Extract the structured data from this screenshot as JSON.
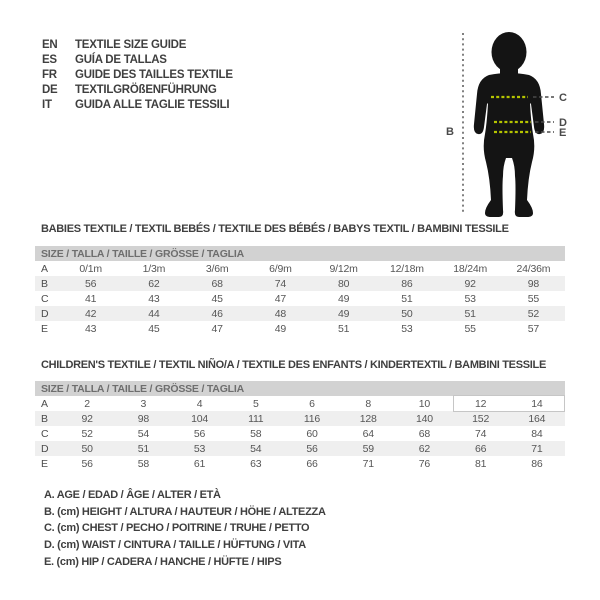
{
  "colors": {
    "background": "#ffffff",
    "text": "#3f3f3f",
    "table_text": "#565656",
    "header_bar": "#d2d2d2",
    "header_bar_text": "#6e6e6e",
    "row_shade": "#efefef",
    "silhouette": "#141414",
    "measure_dash": "#b5c400",
    "guide_dash": "#4a4a4a",
    "highlight_border": "#c6c6c6"
  },
  "languages": [
    {
      "code": "EN",
      "label": "TEXTILE SIZE GUIDE"
    },
    {
      "code": "ES",
      "label": "GUÍA DE TALLAS"
    },
    {
      "code": "FR",
      "label": "GUIDE DES TAILLES TEXTILE"
    },
    {
      "code": "DE",
      "label": "TEXTILGRÖßENFÜHRUNG"
    },
    {
      "code": "IT",
      "label": "GUIDA ALLE TAGLIE TESSILI"
    }
  ],
  "figure": {
    "labels": {
      "height": "B",
      "chest": "C",
      "waist": "D",
      "hip": "E"
    }
  },
  "babies": {
    "title": "BABIES TEXTILE / TEXTIL BEBÉS / TEXTILE DES BÉBÉS / BABYS TEXTIL / BAMBINI TESSILE",
    "size_header": "SIZE / TALLA / TAILLE / GRÖSSE / TAGLIA",
    "rows": [
      {
        "key": "A",
        "shaded": false,
        "cells": [
          "0/1m",
          "1/3m",
          "3/6m",
          "6/9m",
          "9/12m",
          "12/18m",
          "18/24m",
          "24/36m"
        ]
      },
      {
        "key": "B",
        "shaded": true,
        "cells": [
          "56",
          "62",
          "68",
          "74",
          "80",
          "86",
          "92",
          "98"
        ]
      },
      {
        "key": "C",
        "shaded": false,
        "cells": [
          "41",
          "43",
          "45",
          "47",
          "49",
          "51",
          "53",
          "55"
        ]
      },
      {
        "key": "D",
        "shaded": true,
        "cells": [
          "42",
          "44",
          "46",
          "48",
          "49",
          "50",
          "51",
          "52"
        ]
      },
      {
        "key": "E",
        "shaded": false,
        "cells": [
          "43",
          "45",
          "47",
          "49",
          "51",
          "53",
          "55",
          "57"
        ]
      }
    ]
  },
  "children": {
    "title": "CHILDREN'S TEXTILE / TEXTIL NIÑO/A / TEXTILE DES ENFANTS / KINDERTEXTIL / BAMBINI TESSILE",
    "size_header": "SIZE / TALLA / TAILLE / GRÖSSE / TAGLIA",
    "highlighted_sizes": [
      "12",
      "14"
    ],
    "rows": [
      {
        "key": "A",
        "shaded": false,
        "cells": [
          "2",
          "3",
          "4",
          "5",
          "6",
          "8",
          "10",
          "12",
          "14"
        ]
      },
      {
        "key": "B",
        "shaded": true,
        "cells": [
          "92",
          "98",
          "104",
          "111",
          "116",
          "128",
          "140",
          "152",
          "164"
        ]
      },
      {
        "key": "C",
        "shaded": false,
        "cells": [
          "52",
          "54",
          "56",
          "58",
          "60",
          "64",
          "68",
          "74",
          "84"
        ]
      },
      {
        "key": "D",
        "shaded": true,
        "cells": [
          "50",
          "51",
          "53",
          "54",
          "56",
          "59",
          "62",
          "66",
          "71"
        ]
      },
      {
        "key": "E",
        "shaded": false,
        "cells": [
          "56",
          "58",
          "61",
          "63",
          "66",
          "71",
          "76",
          "81",
          "86"
        ]
      }
    ]
  },
  "legend": {
    "items": [
      "A. AGE / EDAD / ÂGE / ALTER / ETÀ",
      "B. (cm) HEIGHT / ALTURA / HAUTEUR / HÖHE / ALTEZZA",
      "C. (cm) CHEST / PECHO / POITRINE / TRUHE / PETTO",
      "D. (cm) WAIST / CINTURA / TAILLE / HÜFTUNG / VITA",
      "E. (cm) HIP / CADERA / HANCHE / HÜFTE / HIPS"
    ]
  }
}
